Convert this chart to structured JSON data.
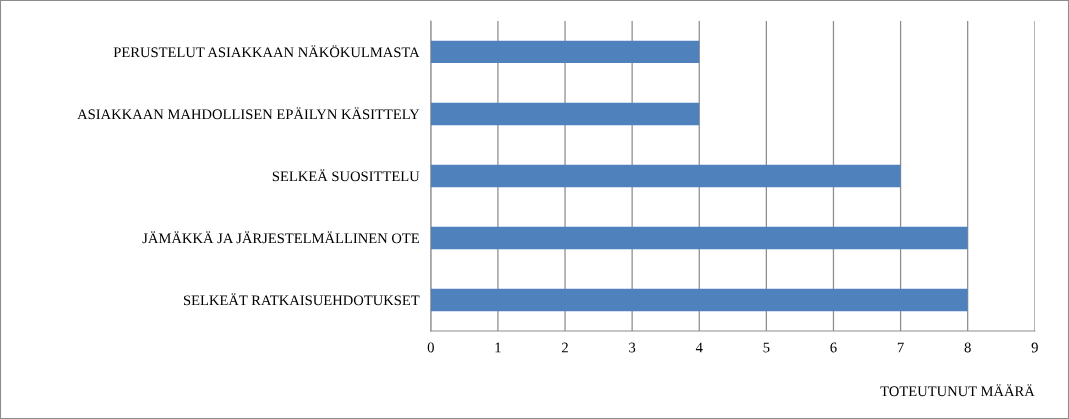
{
  "chart_data": {
    "type": "bar",
    "orientation": "horizontal",
    "xlabel": "TOTEUTUNUT MÄÄRÄ",
    "categories": [
      "PERUSTELUT ASIAKKAAN NÄKÖKULMASTA",
      "ASIAKKAAN MAHDOLLISEN EPÄILYN KÄSITTELY",
      "SELKEÄ SUOSITTELU",
      "JÄMÄKKÄ JA JÄRJESTELMÄLLINEN OTE",
      "SELKEÄT RATKAISUEHDOTUKSET"
    ],
    "values": [
      4,
      4,
      7,
      8,
      8
    ],
    "color": "#4f81bd",
    "xlim": [
      0,
      9
    ],
    "xticks": [
      0,
      1,
      2,
      3,
      4,
      5,
      6,
      7,
      8,
      9
    ],
    "grid": "x"
  }
}
